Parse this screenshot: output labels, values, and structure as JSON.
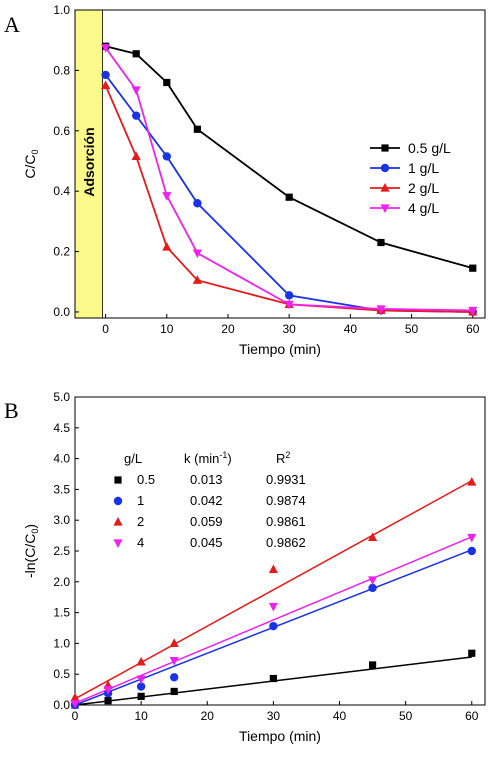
{
  "chart_data": [
    {
      "panel": "A",
      "type": "line",
      "xlabel": "Tiempo (min)",
      "ylabel_main": "C/C",
      "ylabel_sub": "0",
      "xlim": [
        -5,
        62
      ],
      "ylim": [
        -0.02,
        1.0
      ],
      "xticks": [
        0,
        10,
        20,
        30,
        40,
        50,
        60
      ],
      "yticks": [
        0.0,
        0.2,
        0.4,
        0.6,
        0.8,
        1.0
      ],
      "ytick_labels": [
        "0.0",
        "0.2",
        "0.4",
        "0.6",
        "0.8",
        "1.0"
      ],
      "band_label": "Adsorción",
      "band_range": [
        -5,
        -0.5
      ],
      "band_color": "#fbf98a",
      "legend_position": "right",
      "series": [
        {
          "name": "0.5 g/L",
          "color": "#000000",
          "marker": "square",
          "x": [
            0,
            5,
            10,
            15,
            30,
            45,
            60
          ],
          "y": [
            0.88,
            0.855,
            0.76,
            0.605,
            0.38,
            0.23,
            0.145
          ]
        },
        {
          "name": "1 g/L",
          "color": "#1a33e6",
          "marker": "circle",
          "x": [
            0,
            5,
            10,
            15,
            30,
            45,
            60
          ],
          "y": [
            0.785,
            0.65,
            0.515,
            0.36,
            0.055,
            0.005,
            0.0
          ]
        },
        {
          "name": "2 g/L",
          "color": "#e61a1a",
          "marker": "triangle-up",
          "x": [
            0,
            5,
            10,
            15,
            30,
            45,
            60
          ],
          "y": [
            0.75,
            0.515,
            0.215,
            0.105,
            0.025,
            0.005,
            0.0
          ]
        },
        {
          "name": "4 g/L",
          "color": "#ee22ee",
          "marker": "triangle-down",
          "x": [
            0,
            5,
            10,
            15,
            30,
            45,
            60
          ],
          "y": [
            0.875,
            0.735,
            0.385,
            0.195,
            0.025,
            0.01,
            0.005
          ]
        }
      ]
    },
    {
      "panel": "B",
      "type": "scatter",
      "xlabel": "Tiempo (min)",
      "ylabel_main": "-ln(C/C",
      "ylabel_sub": "0",
      "ylabel_end": ")",
      "xlim": [
        0,
        62
      ],
      "ylim": [
        0,
        5.0
      ],
      "xticks": [
        0,
        10,
        20,
        30,
        40,
        50,
        60
      ],
      "yticks": [
        0,
        0.5,
        1.0,
        1.5,
        2.0,
        2.5,
        3.0,
        3.5,
        4.0,
        4.5,
        5.0
      ],
      "ytick_labels": [
        "0.0",
        "0.5",
        "1.0",
        "1.5",
        "2.0",
        "2.5",
        "3.0",
        "3.5",
        "4.0",
        "4.5",
        "5.0"
      ],
      "table_headers": [
        "g/L",
        "k (min",
        "-1",
        ")",
        "R",
        "2"
      ],
      "table_rows": [
        {
          "dose": "0.5",
          "k": "0.013",
          "r2": "0.9931"
        },
        {
          "dose": "1",
          "k": "0.042",
          "r2": "0.9874"
        },
        {
          "dose": "2",
          "k": "0.059",
          "r2": "0.9861"
        },
        {
          "dose": "4",
          "k": "0.045",
          "r2": "0.9862"
        }
      ],
      "series": [
        {
          "color": "#000000",
          "marker": "square",
          "x": [
            0,
            5,
            10,
            15,
            30,
            45,
            60
          ],
          "y": [
            0.0,
            0.07,
            0.14,
            0.22,
            0.43,
            0.65,
            0.84
          ],
          "fit": [
            0.0,
            0.013
          ]
        },
        {
          "color": "#1a33e6",
          "marker": "circle",
          "x": [
            0,
            5,
            10,
            15,
            30,
            45,
            60
          ],
          "y": [
            0.0,
            0.19,
            0.3,
            0.45,
            1.28,
            1.9,
            2.5
          ],
          "fit": [
            0.0,
            0.042
          ]
        },
        {
          "color": "#e61a1a",
          "marker": "triangle-up",
          "x": [
            0,
            5,
            10,
            15,
            30,
            45,
            60
          ],
          "y": [
            0.12,
            0.32,
            0.7,
            1.0,
            2.2,
            2.72,
            3.62
          ],
          "fit": [
            0.1,
            0.059
          ]
        },
        {
          "color": "#ee22ee",
          "marker": "triangle-down",
          "x": [
            0,
            5,
            10,
            15,
            30,
            45,
            60
          ],
          "y": [
            0.02,
            0.25,
            0.42,
            0.72,
            1.6,
            2.03,
            2.72
          ],
          "fit": [
            0.03,
            0.045
          ]
        }
      ]
    }
  ]
}
